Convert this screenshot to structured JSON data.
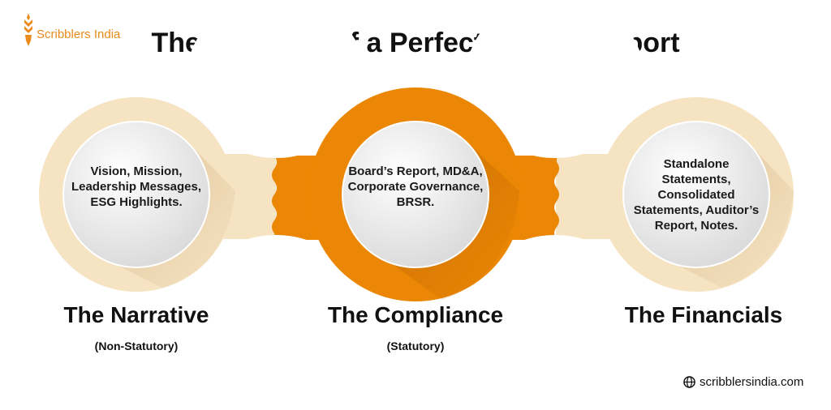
{
  "brand": {
    "name": "Scribblers India",
    "website": "scribblersindia.com",
    "icon": "globe-icon"
  },
  "title": "The Anatomy of a Perfect Annual Report",
  "colors": {
    "orange": "#EC8705",
    "beige": "#F6E3C2"
  },
  "sections": [
    {
      "heading": "The Narrative",
      "subheading": "(Non-Statutory)",
      "content": "Vision, Mission, Leadership Messages, ESG Highlights.",
      "color": "#F6E3C2"
    },
    {
      "heading": "The Compliance",
      "subheading": "(Statutory)",
      "content": "Board’s Report, MD&A, Corporate Governance, BRSR.",
      "color": "#EC8705"
    },
    {
      "heading": "The Financials",
      "subheading": "",
      "content": "Standalone Statements, Consolidated Statements, Auditor’s Report, Notes.",
      "color": "#F6E3C2"
    }
  ]
}
